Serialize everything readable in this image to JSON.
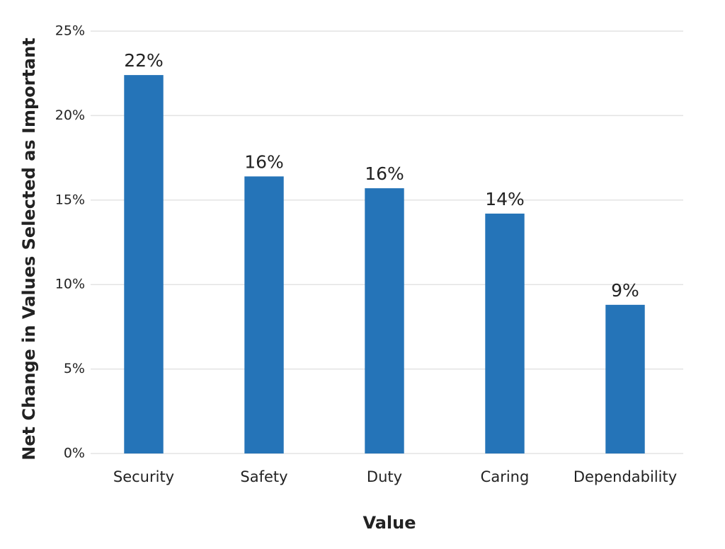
{
  "chart_data": {
    "type": "bar",
    "x_label": "Value",
    "y_label": "Net Change in Values Selected as Important",
    "categories": [
      "Security",
      "Safety",
      "Duty",
      "Caring",
      "Dependability"
    ],
    "values": [
      22.4,
      16.4,
      15.7,
      14.2,
      8.8
    ],
    "value_labels": [
      "22%",
      "16%",
      "16%",
      "14%",
      "9%"
    ],
    "color": "#2574b8",
    "ylim": [
      0,
      25
    ],
    "yticks": [
      {
        "value": 0,
        "label": "0%"
      },
      {
        "value": 5,
        "label": "5%"
      },
      {
        "value": 10,
        "label": "10%"
      },
      {
        "value": 15,
        "label": "15%"
      },
      {
        "value": 20,
        "label": "20%"
      },
      {
        "value": 25,
        "label": "25%"
      }
    ],
    "grid": true
  }
}
